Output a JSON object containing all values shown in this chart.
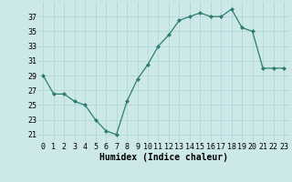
{
  "x": [
    0,
    1,
    2,
    3,
    4,
    5,
    6,
    7,
    8,
    9,
    10,
    11,
    12,
    13,
    14,
    15,
    16,
    17,
    18,
    19,
    20,
    21,
    22,
    23
  ],
  "y": [
    29,
    26.5,
    26.5,
    25.5,
    25,
    23,
    21.5,
    21,
    25.5,
    28.5,
    30.5,
    33,
    34.5,
    36.5,
    37,
    37.5,
    37,
    37,
    38,
    35.5,
    35,
    30,
    30,
    30
  ],
  "line_color": "#2e7d6e",
  "marker": "D",
  "marker_size": 2.0,
  "bg_color": "#cce8e8",
  "grid_color": "#b0d8d8",
  "xlabel": "Humidex (Indice chaleur)",
  "xlabel_fontsize": 7,
  "yticks": [
    21,
    23,
    25,
    27,
    29,
    31,
    33,
    35,
    37
  ],
  "xticks": [
    0,
    1,
    2,
    3,
    4,
    5,
    6,
    7,
    8,
    9,
    10,
    11,
    12,
    13,
    14,
    15,
    16,
    17,
    18,
    19,
    20,
    21,
    22,
    23
  ],
  "ylim": [
    20.0,
    39.0
  ],
  "xlim": [
    -0.5,
    23.5
  ],
  "tick_fontsize": 6.0
}
